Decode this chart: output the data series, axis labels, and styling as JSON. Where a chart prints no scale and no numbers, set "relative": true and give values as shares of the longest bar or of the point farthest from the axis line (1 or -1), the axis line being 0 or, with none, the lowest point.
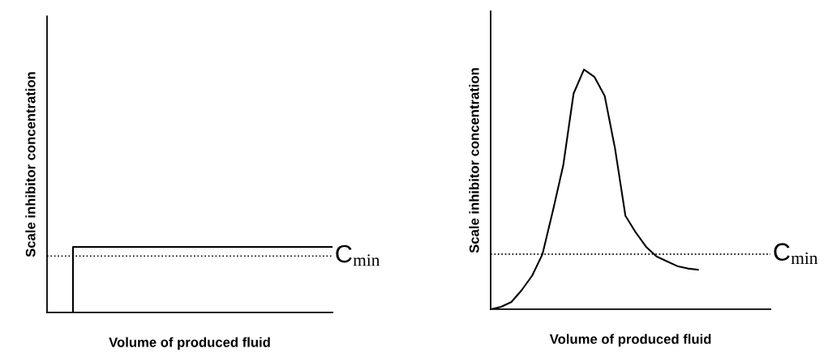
{
  "chart_data": [
    {
      "type": "step",
      "relative": true,
      "tick_labels": false,
      "xlabel": "Volume of produced fluid",
      "ylabel": "Scale inhibitor concentration",
      "categories": [
        null,
        null,
        null,
        null,
        null,
        null,
        null,
        null,
        null,
        null,
        null
      ],
      "values": [
        0,
        1,
        1,
        1,
        1,
        1,
        1,
        1,
        1,
        1,
        1
      ],
      "color": "#000000",
      "ref_lines": [
        {
          "axis": "y",
          "value": 0.86,
          "label": "C$_{min}$",
          "line_style": "dotted",
          "color": "#000000"
        }
      ]
    },
    {
      "type": "line",
      "relative": true,
      "tick_labels": false,
      "xlabel": "Volume of produced fluid",
      "ylabel": "Scale inhibitor concentration",
      "categories": [
        null,
        null,
        null,
        null,
        null,
        null,
        null,
        null,
        null,
        null,
        null,
        null,
        null,
        null,
        null,
        null,
        null,
        null,
        null,
        null,
        null,
        null,
        null,
        null,
        null,
        null,
        null,
        null
      ],
      "values": [
        0,
        0.01,
        0.03,
        0.08,
        0.14,
        0.23,
        0.41,
        0.6,
        0.9,
        1.0,
        0.97,
        0.89,
        0.67,
        0.39,
        0.32,
        0.26,
        0.22,
        0.2,
        0.18,
        0.17,
        0.165,
        null,
        null,
        null,
        null,
        null,
        null,
        null
      ],
      "color": "#000000",
      "ref_lines": [
        {
          "axis": "y",
          "value": 0.23,
          "label": "C$_{min}$",
          "line_style": "dotted",
          "color": "#000000"
        }
      ]
    }
  ]
}
